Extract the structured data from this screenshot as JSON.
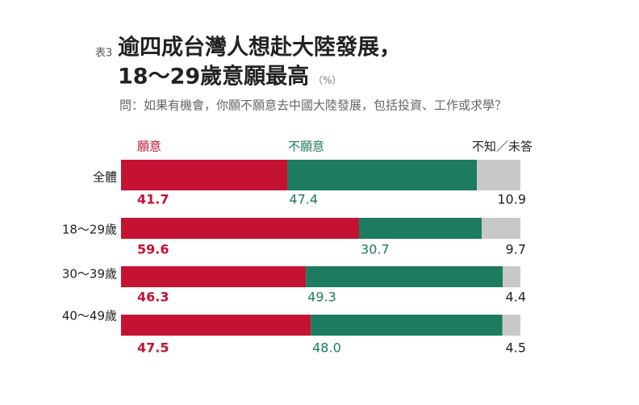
{
  "chart_data": {
    "type": "stacked-bar",
    "label": "表3",
    "title": "逾四成台灣人想赴大陸發展，",
    "title_line2": "18〜29歲意願最高",
    "unit": "（%）",
    "subtitle": "問：如果有機會，你願不願意去中國大陸發展，包括投資、工作或求學？",
    "categories": [
      "全體",
      "18〜29歲",
      "30〜39歲",
      "40〜49歲"
    ],
    "series": [
      {
        "name": "願意",
        "color": "#c41332",
        "values": [
          41.7,
          59.6,
          46.3,
          47.5
        ]
      },
      {
        "name": "不願意",
        "color": "#1c7b60",
        "values": [
          47.4,
          30.7,
          49.3,
          48.0
        ],
        "value_labels": [
          "47.4",
          "30.7",
          "49.3",
          "48.0"
        ]
      },
      {
        "name": "不知／未答",
        "color": "#c8c8c8",
        "values": [
          10.9,
          9.7,
          4.4,
          4.5
        ]
      }
    ],
    "xlim": [
      0,
      100
    ]
  }
}
